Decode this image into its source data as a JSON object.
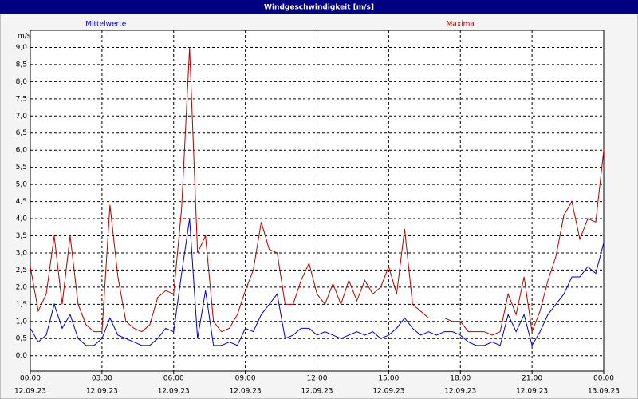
{
  "chart_data": {
    "type": "line",
    "title": "Windgeschwindigkeit [m/s]",
    "y_label": "m/s",
    "x": [
      0,
      20,
      40,
      60,
      80,
      100,
      120,
      140,
      160,
      180,
      200,
      220,
      240,
      260,
      280,
      300,
      320,
      340,
      360,
      380,
      400,
      420,
      440,
      460,
      480,
      500,
      520,
      540,
      560,
      580,
      600,
      620,
      640,
      660,
      680,
      700,
      720,
      740,
      760,
      780,
      800,
      820,
      840,
      860,
      880,
      900,
      920,
      940,
      960,
      980,
      1000,
      1020,
      1040,
      1060,
      1080,
      1100,
      1120,
      1140,
      1160,
      1180,
      1200,
      1220,
      1240,
      1260,
      1280,
      1300,
      1320,
      1340,
      1360,
      1380,
      1400,
      1420,
      1440
    ],
    "series": [
      {
        "name": "Mittelwerte",
        "color": "#0000c8",
        "values": [
          0.8,
          0.4,
          0.6,
          1.5,
          0.8,
          1.2,
          0.5,
          0.3,
          0.3,
          0.5,
          1.1,
          0.6,
          0.5,
          0.4,
          0.3,
          0.3,
          0.5,
          0.8,
          0.7,
          2.4,
          4.0,
          0.5,
          1.9,
          0.3,
          0.3,
          0.4,
          0.3,
          0.8,
          0.7,
          1.2,
          1.5,
          1.8,
          0.5,
          0.6,
          0.8,
          0.8,
          0.6,
          0.7,
          0.6,
          0.5,
          0.6,
          0.7,
          0.6,
          0.7,
          0.5,
          0.6,
          0.8,
          1.1,
          0.8,
          0.6,
          0.7,
          0.6,
          0.7,
          0.7,
          0.6,
          0.4,
          0.3,
          0.3,
          0.4,
          0.3,
          1.2,
          0.7,
          1.2,
          0.3,
          0.7,
          1.2,
          1.5,
          1.8,
          2.3,
          2.3,
          2.6,
          2.4,
          3.3
        ]
      },
      {
        "name": "Maxima",
        "color": "#b40000",
        "values": [
          2.6,
          1.3,
          1.8,
          3.5,
          1.5,
          3.5,
          1.5,
          0.9,
          0.7,
          0.7,
          4.4,
          2.3,
          1.0,
          0.8,
          0.7,
          0.9,
          1.7,
          1.9,
          1.8,
          4.3,
          9.0,
          3.0,
          3.5,
          1.0,
          0.7,
          0.8,
          1.2,
          1.9,
          2.5,
          3.9,
          3.1,
          3.0,
          1.5,
          1.5,
          2.2,
          2.7,
          1.8,
          1.5,
          2.1,
          1.5,
          2.2,
          1.6,
          2.2,
          1.8,
          2.0,
          2.6,
          1.8,
          3.7,
          1.5,
          1.3,
          1.1,
          1.1,
          1.1,
          1.0,
          1.0,
          0.7,
          0.7,
          0.7,
          0.6,
          0.7,
          1.8,
          1.2,
          2.3,
          0.7,
          1.3,
          2.2,
          2.9,
          4.1,
          4.5,
          3.4,
          4.0,
          3.9,
          6.0
        ]
      }
    ],
    "xlim": [
      0,
      1440
    ],
    "xticks": [
      {
        "value": 0,
        "label": "00:00"
      },
      {
        "value": 180,
        "label": "03:00"
      },
      {
        "value": 360,
        "label": "06:00"
      },
      {
        "value": 540,
        "label": "09:00"
      },
      {
        "value": 720,
        "label": "12:00"
      },
      {
        "value": 900,
        "label": "15:00"
      },
      {
        "value": 1080,
        "label": "18:00"
      },
      {
        "value": 1260,
        "label": "21:00"
      },
      {
        "value": 1440,
        "label": "00:00"
      }
    ],
    "xtick_dates": [
      "12.09.23",
      "12.09.23",
      "12.09.23",
      "12.09.23",
      "12.09.23",
      "12.09.23",
      "12.09.23",
      "12.09.23",
      "13.09.23"
    ],
    "ylim": [
      -0.45,
      9.5
    ],
    "yticks": [
      {
        "value": 0,
        "label": "0,0"
      },
      {
        "value": 0.5,
        "label": "0,5"
      },
      {
        "value": 1,
        "label": "1,0"
      },
      {
        "value": 1.5,
        "label": "1,5"
      },
      {
        "value": 2,
        "label": "2,0"
      },
      {
        "value": 2.5,
        "label": "2,5"
      },
      {
        "value": 3,
        "label": "3,0"
      },
      {
        "value": 3.5,
        "label": "3,5"
      },
      {
        "value": 4,
        "label": "4,0"
      },
      {
        "value": 4.5,
        "label": "4,5"
      },
      {
        "value": 5,
        "label": "5,0"
      },
      {
        "value": 5.5,
        "label": "5,5"
      },
      {
        "value": 6,
        "label": "6,0"
      },
      {
        "value": 6.5,
        "label": "6,5"
      },
      {
        "value": 7,
        "label": "7,0"
      },
      {
        "value": 7.5,
        "label": "7,5"
      },
      {
        "value": 8,
        "label": "8,0"
      },
      {
        "value": 8.5,
        "label": "8,5"
      },
      {
        "value": 9,
        "label": "9,0"
      }
    ],
    "grid": true
  }
}
